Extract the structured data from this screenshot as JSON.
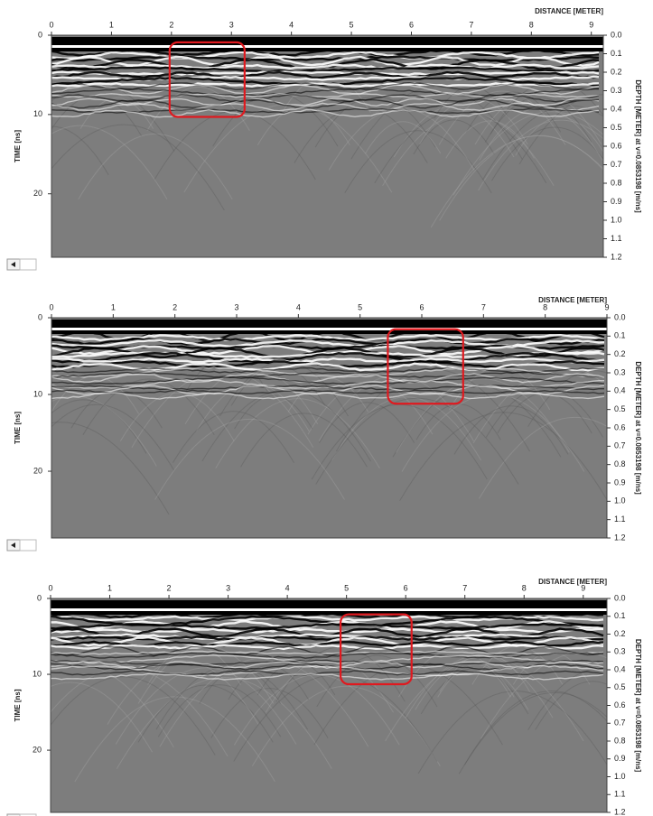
{
  "panels": [
    {
      "distance_title": "DISTANCE [METER]",
      "time_title": "TIME [ns]",
      "depth_title": "DEPTH [METER] at v=0.0853198 [m/ns]",
      "xlim": [
        0,
        9.2
      ],
      "xticks": [
        0,
        1,
        2,
        3,
        4,
        5,
        6,
        7,
        8,
        9
      ],
      "tlim": [
        0,
        28
      ],
      "tticks": [
        0,
        10,
        20
      ],
      "depthlim": [
        0,
        1.2
      ],
      "depthticks": [
        {
          "value": 0,
          "label": "0.0"
        },
        {
          "value": 0.1,
          "label": "0.1"
        },
        {
          "value": 0.2,
          "label": "0.2"
        },
        {
          "value": 0.3,
          "label": "0.3"
        },
        {
          "value": 0.4,
          "label": "0.4"
        },
        {
          "value": 0.5,
          "label": "0.5"
        },
        {
          "value": 0.6,
          "label": "0.6"
        },
        {
          "value": 0.7,
          "label": "0.7"
        },
        {
          "value": 0.8,
          "label": "0.8"
        },
        {
          "value": 0.9,
          "label": "0.9"
        },
        {
          "value": 1.0,
          "label": "1.0"
        },
        {
          "value": 1.1,
          "label": "1.1"
        },
        {
          "value": 1.2,
          "label": "1.2"
        }
      ],
      "highlight": {
        "x": [
          1.97,
          3.22
        ],
        "t": [
          0.9,
          10.3
        ]
      }
    },
    {
      "distance_title": "DISTANCE [METER]",
      "time_title": "TIME [ns]",
      "depth_title": "DEPTH [METER] at v=0.0853198 [m/ns]",
      "xlim": [
        0,
        9
      ],
      "xticks": [
        0,
        1,
        2,
        3,
        4,
        5,
        6,
        7,
        8,
        9
      ],
      "tlim": [
        0,
        28.7
      ],
      "tticks": [
        0,
        10,
        20
      ],
      "depthlim": [
        0,
        1.2
      ],
      "depthticks": [
        {
          "value": 0,
          "label": "0.0"
        },
        {
          "value": 0.1,
          "label": "0.1"
        },
        {
          "value": 0.2,
          "label": "0.2"
        },
        {
          "value": 0.3,
          "label": "0.3"
        },
        {
          "value": 0.4,
          "label": "0.4"
        },
        {
          "value": 0.5,
          "label": "0.5"
        },
        {
          "value": 0.6,
          "label": "0.6"
        },
        {
          "value": 0.7,
          "label": "0.7"
        },
        {
          "value": 0.8,
          "label": "0.8"
        },
        {
          "value": 0.9,
          "label": "0.9"
        },
        {
          "value": 1.0,
          "label": "1.0"
        },
        {
          "value": 1.1,
          "label": "1.1"
        },
        {
          "value": 1.2,
          "label": "1.2"
        }
      ],
      "highlight": {
        "x": [
          5.45,
          6.67
        ],
        "t": [
          1.5,
          11.2
        ]
      }
    },
    {
      "distance_title": "DISTANCE [METER]",
      "time_title": "TIME [ns]",
      "depth_title": "DEPTH [METER] at v=0.0853198 [m/ns]",
      "xlim": [
        0,
        9.4
      ],
      "xticks": [
        0,
        1,
        2,
        3,
        4,
        5,
        6,
        7,
        8,
        9
      ],
      "tlim": [
        0,
        28.2
      ],
      "tticks": [
        0,
        10,
        20
      ],
      "depthlim": [
        0,
        1.2
      ],
      "depthticks": [
        {
          "value": 0,
          "label": "0.0"
        },
        {
          "value": 0.1,
          "label": "0.1"
        },
        {
          "value": 0.2,
          "label": "0.2"
        },
        {
          "value": 0.3,
          "label": "0.3"
        },
        {
          "value": 0.4,
          "label": "0.4"
        },
        {
          "value": 0.5,
          "label": "0.5"
        },
        {
          "value": 0.6,
          "label": "0.6"
        },
        {
          "value": 0.7,
          "label": "0.7"
        },
        {
          "value": 0.8,
          "label": "0.8"
        },
        {
          "value": 0.9,
          "label": "0.9"
        },
        {
          "value": 1.0,
          "label": "1.0"
        },
        {
          "value": 1.1,
          "label": "1.1"
        },
        {
          "value": 1.2,
          "label": "1.2"
        }
      ],
      "highlight": {
        "x": [
          4.9,
          6.1
        ],
        "t": [
          2.1,
          11.3
        ]
      }
    }
  ]
}
